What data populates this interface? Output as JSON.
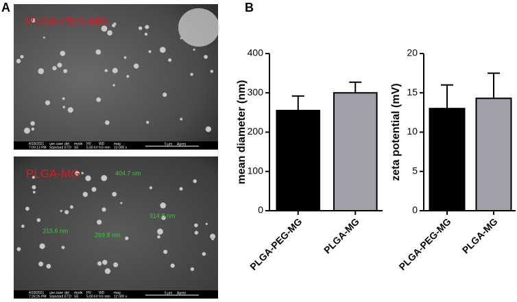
{
  "panel_labels": [
    "A",
    "B"
  ],
  "images": [
    {
      "title": "PLGA-PEG-MG",
      "annotations": [],
      "info": [
        "4/18/2021",
        "7:09:13 PM",
        "use case",
        "Standard",
        "det",
        "ETD",
        "mode",
        "SE",
        "HV",
        "5.00 kV",
        "WD",
        "9.6 mm",
        "mag",
        "10 000 x",
        "5 μm",
        "Apreo"
      ]
    },
    {
      "title": "PLGA-MG",
      "annotations": [
        "404.7 nm",
        "315.6 nm",
        "269.8 nm",
        "314.8 nm"
      ],
      "info": [
        "4/18/2021",
        "7:26:26 PM",
        "use case",
        "Standard",
        "det",
        "ETD",
        "mode",
        "SE",
        "HV",
        "5.00 kV",
        "WD",
        "9.6 mm",
        "mag",
        "12 000 x",
        "5 μm",
        "Apreo"
      ]
    }
  ],
  "chart_data": [
    {
      "type": "bar",
      "y_label": "mean diameter (nm)",
      "categories": [
        "PLGA-PEG-MG",
        "PLGA-MG"
      ],
      "values": [
        255,
        300
      ],
      "errors": [
        37,
        27
      ],
      "colors": [
        "#000000",
        "#a0a0a8"
      ],
      "ylim": [
        0,
        400
      ],
      "yticks": [
        0,
        100,
        200,
        300,
        400
      ]
    },
    {
      "type": "bar",
      "y_label": "zeta potential (mV)",
      "categories": [
        "PLGA-PEG-MG",
        "PLGA-MG"
      ],
      "values": [
        13,
        14.3
      ],
      "errors": [
        3,
        3.2
      ],
      "colors": [
        "#000000",
        "#a0a0a8"
      ],
      "ylim": [
        0,
        20
      ],
      "yticks": [
        0,
        5,
        10,
        15,
        20
      ]
    }
  ]
}
